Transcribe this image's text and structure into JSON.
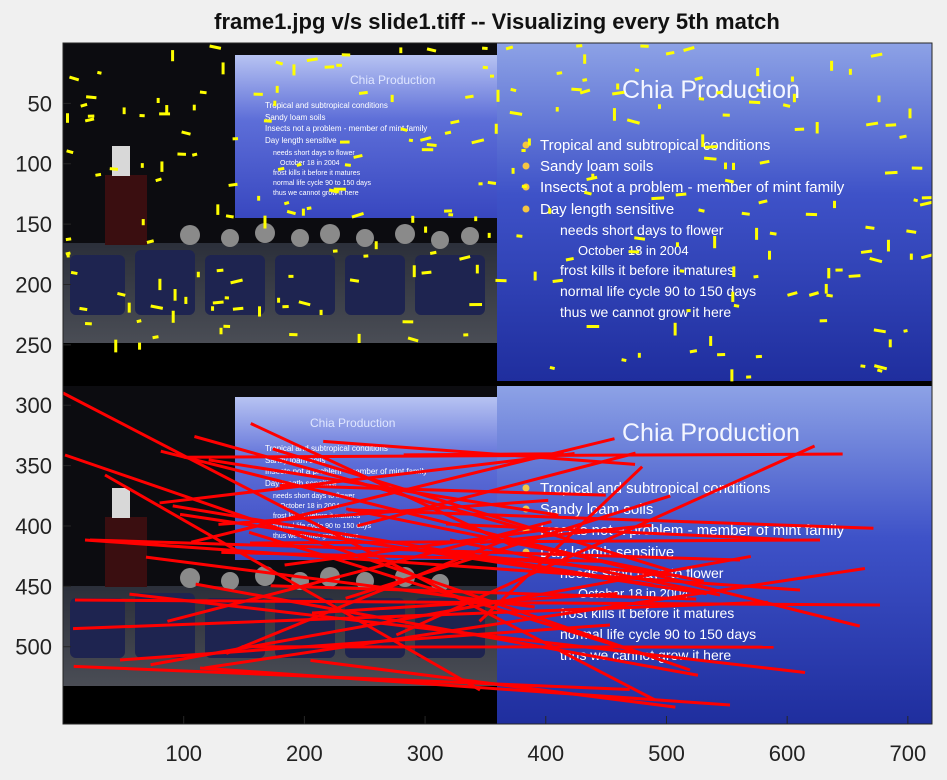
{
  "figure": {
    "title": "frame1.jpg v/s slide1.tiff -- Visualizing every 5th match",
    "x_ticks": [
      "100",
      "200",
      "300",
      "400",
      "500",
      "600",
      "700"
    ],
    "y_ticks": [
      "50",
      "100",
      "150",
      "200",
      "250",
      "300",
      "350",
      "400",
      "450",
      "500"
    ]
  },
  "left_image": {
    "slide_title": "Chia Production",
    "bullets": [
      "Tropical and subtropical conditions",
      "Sandy loam soils",
      "Insects not a problem - member of mint family",
      "Day length sensitive"
    ],
    "sub_bullets": [
      "needs short days to flower",
      "October 18 in 2004",
      "frost kills it before it matures",
      "normal life cycle 90 to 150 days",
      "thus we cannot grow it here"
    ]
  },
  "right_image": {
    "slide_title": "Chia Production",
    "bullets": [
      "Tropical and subtropical conditions",
      "Sandy loam soils",
      "Insects not a problem - member of mint family",
      "Day length sensitive"
    ],
    "sub_bullets": [
      "needs short days to flower",
      "October 18 in 2004",
      "frost kills it before it matures",
      "normal life cycle 90 to 150 days",
      "thus we cannot grow it here"
    ]
  },
  "colors": {
    "keypoint": "#ffff00",
    "match_line": "#ff0000",
    "slide_blue": "#2a39b8"
  }
}
